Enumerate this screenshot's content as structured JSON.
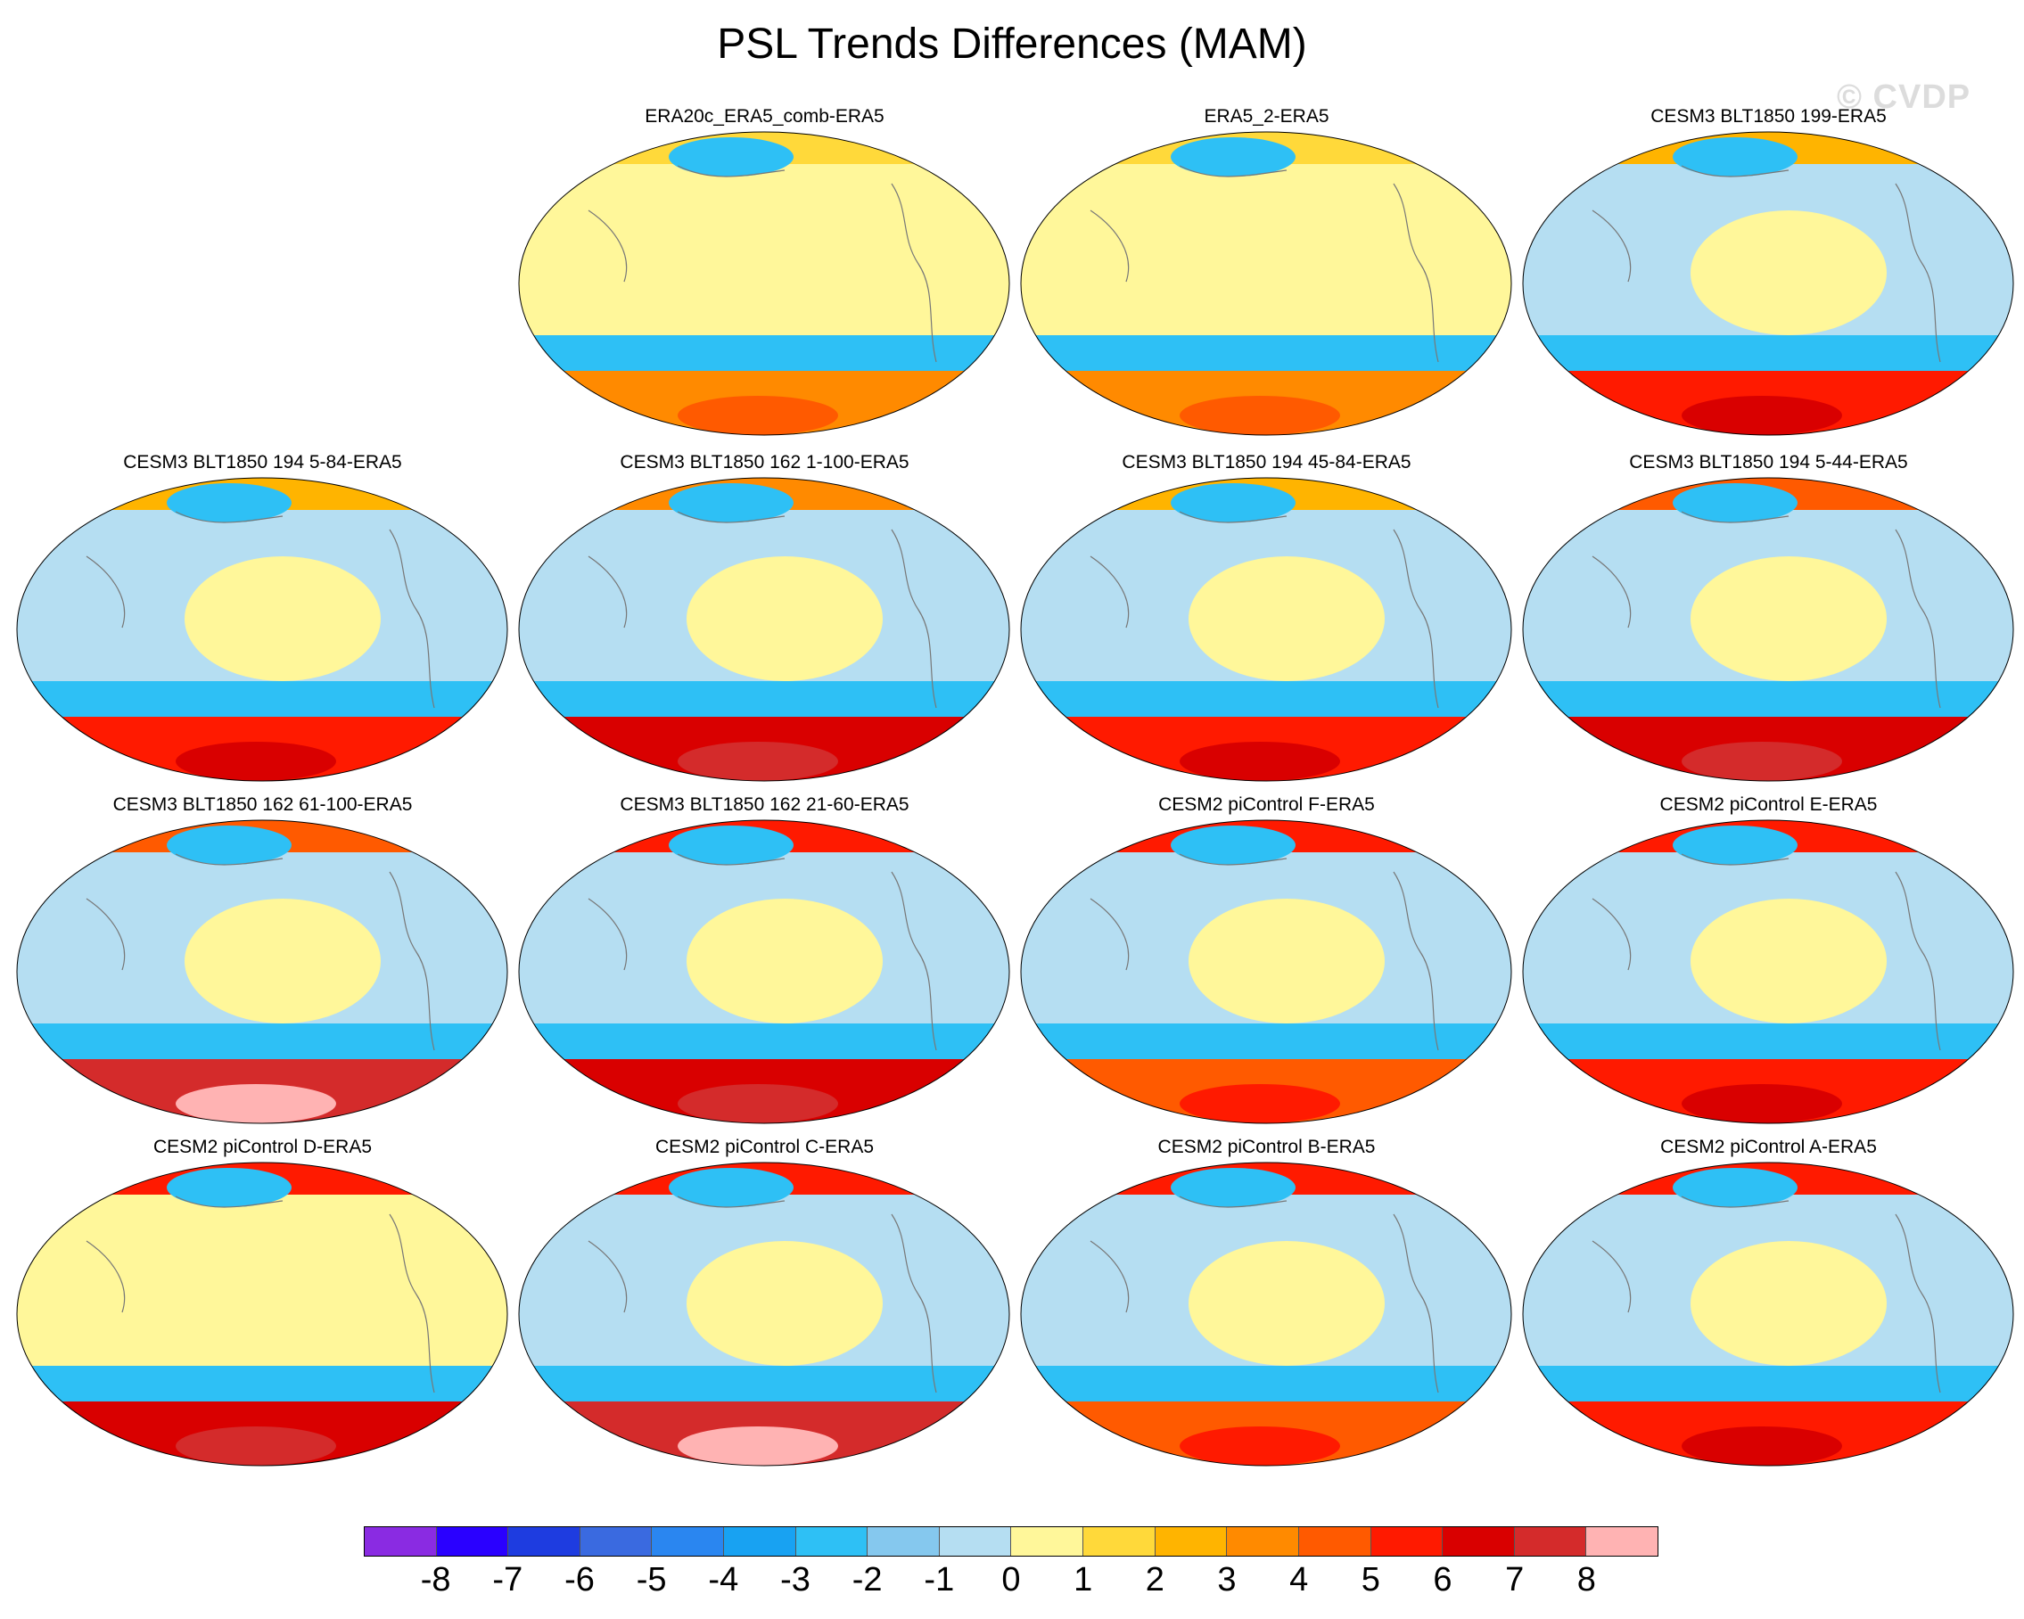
{
  "chart_data": {
    "type": "heatmap",
    "title": "PSL Trends Differences (MAM)",
    "projection": "Robinson-like global map, Pacific-centered",
    "watermark": "© CVDP",
    "panels": [
      {
        "title": "ERA20c_ERA5_comb-ERA5",
        "north": 1,
        "mid": 0,
        "south": 3
      },
      {
        "title": "ERA5_2-ERA5",
        "north": 1,
        "mid": 0,
        "south": 3
      },
      {
        "title": "CESM3 BLT1850 199-ERA5",
        "north": 2,
        "mid": -1,
        "south": 5
      },
      {
        "title": "CESM3 BLT1850 194 5-84-ERA5",
        "north": 2,
        "mid": -1,
        "south": 5
      },
      {
        "title": "CESM3 BLT1850 162 1-100-ERA5",
        "north": 3,
        "mid": -1,
        "south": 6
      },
      {
        "title": "CESM3 BLT1850 194 45-84-ERA5",
        "north": 2,
        "mid": -1,
        "south": 5
      },
      {
        "title": "CESM3 BLT1850 194 5-44-ERA5",
        "north": 4,
        "mid": -1,
        "south": 6
      },
      {
        "title": "CESM3 BLT1850 162 61-100-ERA5",
        "north": 4,
        "mid": -1,
        "south": 7
      },
      {
        "title": "CESM3 BLT1850 162 21-60-ERA5",
        "north": 5,
        "mid": -1,
        "south": 6
      },
      {
        "title": "CESM2 piControl F-ERA5",
        "north": 5,
        "mid": -1,
        "south": 4
      },
      {
        "title": "CESM2 piControl E-ERA5",
        "north": 5,
        "mid": -1,
        "south": 5
      },
      {
        "title": "CESM2 piControl D-ERA5",
        "north": 5,
        "mid": 0,
        "south": 6
      },
      {
        "title": "CESM2 piControl C-ERA5",
        "north": 5,
        "mid": -1,
        "south": 7
      },
      {
        "title": "CESM2 piControl B-ERA5",
        "north": 5,
        "mid": -1,
        "south": 4
      },
      {
        "title": "CESM2 piControl A-ERA5",
        "north": 5,
        "mid": -1,
        "south": 5
      }
    ],
    "colorbar": {
      "labels": [
        "-8",
        "-7",
        "-6",
        "-5",
        "-4",
        "-3",
        "-2",
        "-1",
        "0",
        "1",
        "2",
        "3",
        "4",
        "5",
        "6",
        "7",
        "8"
      ],
      "min": -8,
      "max": 8,
      "colors": [
        "#8a2be2",
        "#2a00ff",
        "#1e3ce0",
        "#3a6ae0",
        "#2a86f0",
        "#18a2f2",
        "#2ec0f5",
        "#85c8ee",
        "#b5def2",
        "#fff79a",
        "#ffd93a",
        "#ffb400",
        "#ff8a00",
        "#ff5a00",
        "#ff1a00",
        "#d90000",
        "#d42b2b",
        "#ffb3b3"
      ]
    }
  }
}
